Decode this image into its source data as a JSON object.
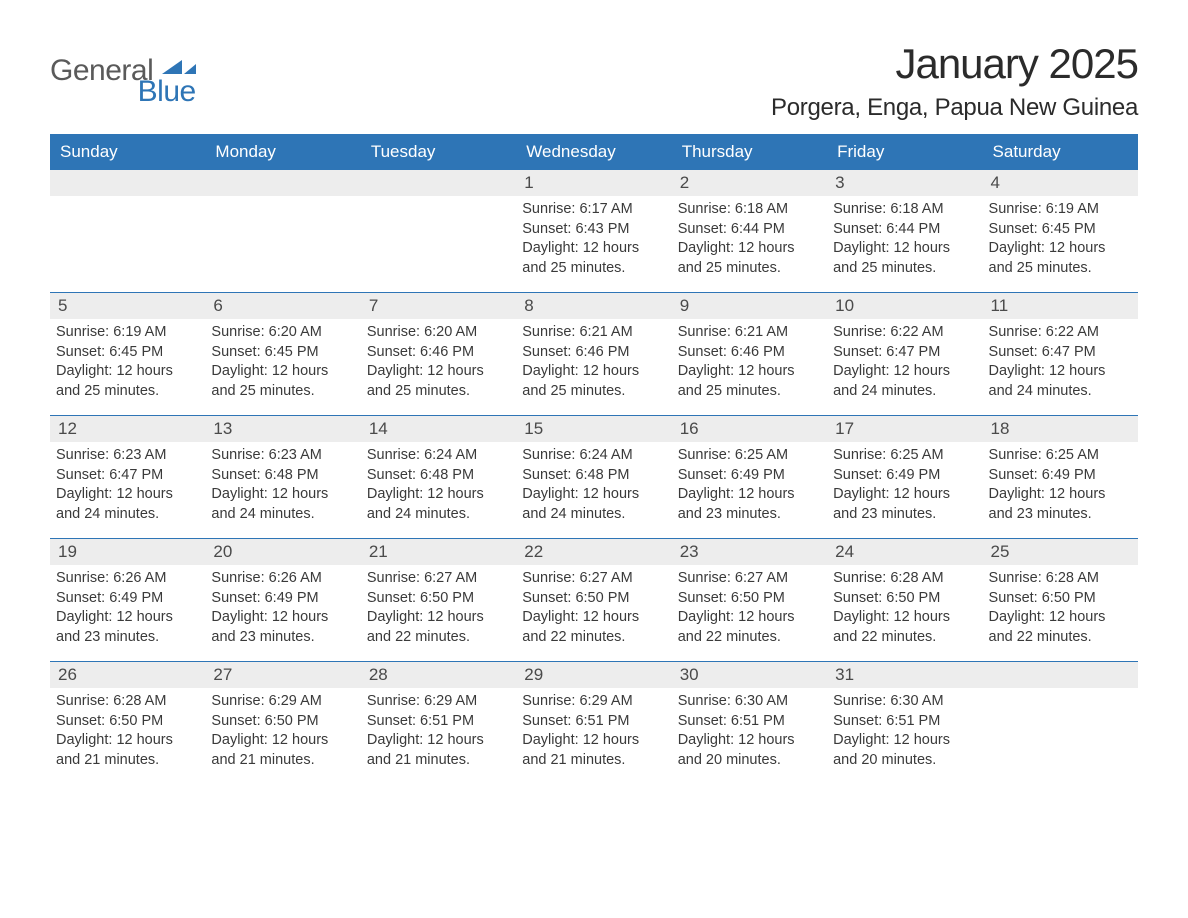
{
  "logo": {
    "general": "General",
    "blue": "Blue",
    "shape_color": "#2e75b6",
    "general_color": "#5a5a5a"
  },
  "title": "January 2025",
  "location": "Porgera, Enga, Papua New Guinea",
  "colors": {
    "header_bg": "#2e75b6",
    "header_text": "#ffffff",
    "daynum_bg": "#ededed",
    "body_text": "#3a3a3a",
    "rule": "#2e75b6",
    "page_bg": "#ffffff"
  },
  "fonts": {
    "title_size": 42,
    "location_size": 24,
    "dow_size": 17,
    "body_size": 14.5
  },
  "days_of_week": [
    "Sunday",
    "Monday",
    "Tuesday",
    "Wednesday",
    "Thursday",
    "Friday",
    "Saturday"
  ],
  "weeks": [
    [
      {
        "n": "",
        "sunrise": "",
        "sunset": "",
        "daylight": ""
      },
      {
        "n": "",
        "sunrise": "",
        "sunset": "",
        "daylight": ""
      },
      {
        "n": "",
        "sunrise": "",
        "sunset": "",
        "daylight": ""
      },
      {
        "n": "1",
        "sunrise": "Sunrise: 6:17 AM",
        "sunset": "Sunset: 6:43 PM",
        "daylight": "Daylight: 12 hours and 25 minutes."
      },
      {
        "n": "2",
        "sunrise": "Sunrise: 6:18 AM",
        "sunset": "Sunset: 6:44 PM",
        "daylight": "Daylight: 12 hours and 25 minutes."
      },
      {
        "n": "3",
        "sunrise": "Sunrise: 6:18 AM",
        "sunset": "Sunset: 6:44 PM",
        "daylight": "Daylight: 12 hours and 25 minutes."
      },
      {
        "n": "4",
        "sunrise": "Sunrise: 6:19 AM",
        "sunset": "Sunset: 6:45 PM",
        "daylight": "Daylight: 12 hours and 25 minutes."
      }
    ],
    [
      {
        "n": "5",
        "sunrise": "Sunrise: 6:19 AM",
        "sunset": "Sunset: 6:45 PM",
        "daylight": "Daylight: 12 hours and 25 minutes."
      },
      {
        "n": "6",
        "sunrise": "Sunrise: 6:20 AM",
        "sunset": "Sunset: 6:45 PM",
        "daylight": "Daylight: 12 hours and 25 minutes."
      },
      {
        "n": "7",
        "sunrise": "Sunrise: 6:20 AM",
        "sunset": "Sunset: 6:46 PM",
        "daylight": "Daylight: 12 hours and 25 minutes."
      },
      {
        "n": "8",
        "sunrise": "Sunrise: 6:21 AM",
        "sunset": "Sunset: 6:46 PM",
        "daylight": "Daylight: 12 hours and 25 minutes."
      },
      {
        "n": "9",
        "sunrise": "Sunrise: 6:21 AM",
        "sunset": "Sunset: 6:46 PM",
        "daylight": "Daylight: 12 hours and 25 minutes."
      },
      {
        "n": "10",
        "sunrise": "Sunrise: 6:22 AM",
        "sunset": "Sunset: 6:47 PM",
        "daylight": "Daylight: 12 hours and 24 minutes."
      },
      {
        "n": "11",
        "sunrise": "Sunrise: 6:22 AM",
        "sunset": "Sunset: 6:47 PM",
        "daylight": "Daylight: 12 hours and 24 minutes."
      }
    ],
    [
      {
        "n": "12",
        "sunrise": "Sunrise: 6:23 AM",
        "sunset": "Sunset: 6:47 PM",
        "daylight": "Daylight: 12 hours and 24 minutes."
      },
      {
        "n": "13",
        "sunrise": "Sunrise: 6:23 AM",
        "sunset": "Sunset: 6:48 PM",
        "daylight": "Daylight: 12 hours and 24 minutes."
      },
      {
        "n": "14",
        "sunrise": "Sunrise: 6:24 AM",
        "sunset": "Sunset: 6:48 PM",
        "daylight": "Daylight: 12 hours and 24 minutes."
      },
      {
        "n": "15",
        "sunrise": "Sunrise: 6:24 AM",
        "sunset": "Sunset: 6:48 PM",
        "daylight": "Daylight: 12 hours and 24 minutes."
      },
      {
        "n": "16",
        "sunrise": "Sunrise: 6:25 AM",
        "sunset": "Sunset: 6:49 PM",
        "daylight": "Daylight: 12 hours and 23 minutes."
      },
      {
        "n": "17",
        "sunrise": "Sunrise: 6:25 AM",
        "sunset": "Sunset: 6:49 PM",
        "daylight": "Daylight: 12 hours and 23 minutes."
      },
      {
        "n": "18",
        "sunrise": "Sunrise: 6:25 AM",
        "sunset": "Sunset: 6:49 PM",
        "daylight": "Daylight: 12 hours and 23 minutes."
      }
    ],
    [
      {
        "n": "19",
        "sunrise": "Sunrise: 6:26 AM",
        "sunset": "Sunset: 6:49 PM",
        "daylight": "Daylight: 12 hours and 23 minutes."
      },
      {
        "n": "20",
        "sunrise": "Sunrise: 6:26 AM",
        "sunset": "Sunset: 6:49 PM",
        "daylight": "Daylight: 12 hours and 23 minutes."
      },
      {
        "n": "21",
        "sunrise": "Sunrise: 6:27 AM",
        "sunset": "Sunset: 6:50 PM",
        "daylight": "Daylight: 12 hours and 22 minutes."
      },
      {
        "n": "22",
        "sunrise": "Sunrise: 6:27 AM",
        "sunset": "Sunset: 6:50 PM",
        "daylight": "Daylight: 12 hours and 22 minutes."
      },
      {
        "n": "23",
        "sunrise": "Sunrise: 6:27 AM",
        "sunset": "Sunset: 6:50 PM",
        "daylight": "Daylight: 12 hours and 22 minutes."
      },
      {
        "n": "24",
        "sunrise": "Sunrise: 6:28 AM",
        "sunset": "Sunset: 6:50 PM",
        "daylight": "Daylight: 12 hours and 22 minutes."
      },
      {
        "n": "25",
        "sunrise": "Sunrise: 6:28 AM",
        "sunset": "Sunset: 6:50 PM",
        "daylight": "Daylight: 12 hours and 22 minutes."
      }
    ],
    [
      {
        "n": "26",
        "sunrise": "Sunrise: 6:28 AM",
        "sunset": "Sunset: 6:50 PM",
        "daylight": "Daylight: 12 hours and 21 minutes."
      },
      {
        "n": "27",
        "sunrise": "Sunrise: 6:29 AM",
        "sunset": "Sunset: 6:50 PM",
        "daylight": "Daylight: 12 hours and 21 minutes."
      },
      {
        "n": "28",
        "sunrise": "Sunrise: 6:29 AM",
        "sunset": "Sunset: 6:51 PM",
        "daylight": "Daylight: 12 hours and 21 minutes."
      },
      {
        "n": "29",
        "sunrise": "Sunrise: 6:29 AM",
        "sunset": "Sunset: 6:51 PM",
        "daylight": "Daylight: 12 hours and 21 minutes."
      },
      {
        "n": "30",
        "sunrise": "Sunrise: 6:30 AM",
        "sunset": "Sunset: 6:51 PM",
        "daylight": "Daylight: 12 hours and 20 minutes."
      },
      {
        "n": "31",
        "sunrise": "Sunrise: 6:30 AM",
        "sunset": "Sunset: 6:51 PM",
        "daylight": "Daylight: 12 hours and 20 minutes."
      },
      {
        "n": "",
        "sunrise": "",
        "sunset": "",
        "daylight": ""
      }
    ]
  ]
}
